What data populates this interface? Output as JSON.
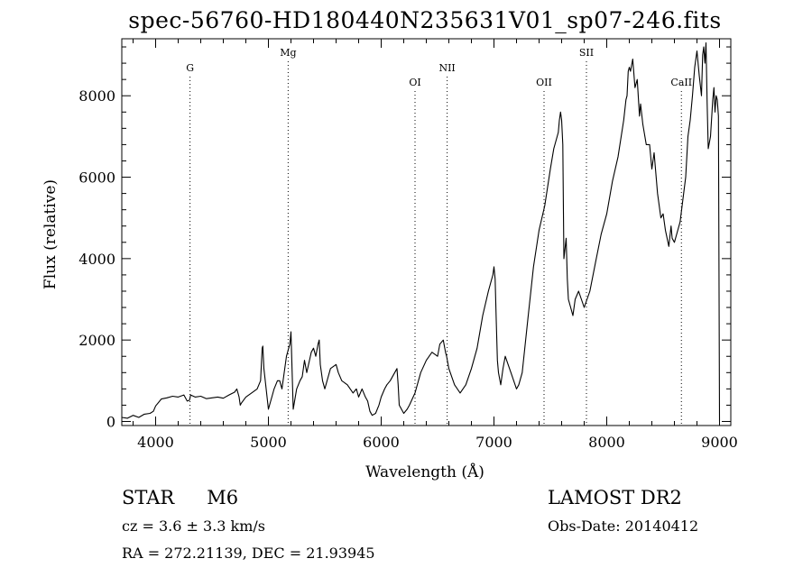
{
  "title": "spec-56760-HD180440N235631V01_sp07-246.fits",
  "info": {
    "object_class": "STAR",
    "subclass": "M6",
    "survey": "LAMOST DR2",
    "cz": "cz = 3.6 ± 3.3 km/s",
    "obs_date": "Obs-Date: 20140412",
    "coords": "RA = 272.21139, DEC =  21.93945"
  },
  "chart_data": {
    "type": "line",
    "xlabel": "Wavelength (Å)",
    "ylabel": "Flux (relative)",
    "xlim": [
      3700,
      9100
    ],
    "ylim": [
      -100,
      9400
    ],
    "xticks": [
      4000,
      5000,
      6000,
      7000,
      8000,
      9000
    ],
    "yticks": [
      0,
      2000,
      4000,
      6000,
      8000
    ],
    "grid": false,
    "line_markers": [
      {
        "label": "G",
        "x": 4305
      },
      {
        "label": "Mg",
        "x": 5175
      },
      {
        "label": "OI",
        "x": 6300
      },
      {
        "label": "NII",
        "x": 6585
      },
      {
        "label": "OII",
        "x": 7444
      },
      {
        "label": "SII",
        "x": 7820
      },
      {
        "label": "CaII",
        "x": 8662
      }
    ],
    "series": [
      {
        "x": [
          3700,
          3750,
          3800,
          3850,
          3900,
          3950,
          3980,
          4000,
          4050,
          4100,
          4150,
          4200,
          4250,
          4280,
          4300,
          4310,
          4350,
          4400,
          4450,
          4500,
          4550,
          4600,
          4650,
          4700,
          4720,
          4740,
          4750,
          4760,
          4800,
          4850,
          4900,
          4930,
          4945,
          4950,
          4960,
          5000,
          5030,
          5050,
          5080,
          5100,
          5120,
          5140,
          5160,
          5180,
          5190,
          5200,
          5220,
          5250,
          5280,
          5300,
          5320,
          5340,
          5380,
          5400,
          5420,
          5440,
          5450,
          5460,
          5480,
          5500,
          5550,
          5600,
          5620,
          5650,
          5700,
          5750,
          5780,
          5800,
          5830,
          5860,
          5880,
          5900,
          5920,
          5950,
          5980,
          6000,
          6030,
          6050,
          6080,
          6100,
          6120,
          6140,
          6150,
          6160,
          6200,
          6230,
          6250,
          6300,
          6350,
          6400,
          6450,
          6500,
          6520,
          6550,
          6570,
          6580,
          6600,
          6650,
          6700,
          6750,
          6800,
          6850,
          6900,
          6950,
          6970,
          6990,
          7000,
          7010,
          7020,
          7030,
          7040,
          7060,
          7080,
          7100,
          7150,
          7200,
          7220,
          7250,
          7300,
          7350,
          7400,
          7450,
          7500,
          7530,
          7550,
          7570,
          7580,
          7590,
          7600,
          7610,
          7620,
          7640,
          7650,
          7660,
          7680,
          7700,
          7720,
          7750,
          7800,
          7850,
          7900,
          7950,
          8000,
          8050,
          8100,
          8150,
          8170,
          8180,
          8190,
          8200,
          8210,
          8230,
          8250,
          8270,
          8290,
          8300,
          8320,
          8350,
          8380,
          8400,
          8420,
          8450,
          8480,
          8500,
          8520,
          8550,
          8570,
          8580,
          8600,
          8650,
          8700,
          8720,
          8740,
          8760,
          8780,
          8800,
          8820,
          8840,
          8850,
          8860,
          8870,
          8880,
          8890,
          8900,
          8920,
          8940,
          8950,
          8960,
          8970,
          8980,
          8990,
          9000
        ],
        "values": [
          100,
          80,
          150,
          100,
          180,
          200,
          250,
          380,
          550,
          580,
          620,
          600,
          650,
          500,
          520,
          650,
          600,
          620,
          560,
          580,
          600,
          570,
          650,
          720,
          800,
          600,
          400,
          450,
          600,
          700,
          800,
          1000,
          1800,
          1850,
          1300,
          300,
          600,
          800,
          1000,
          1000,
          800,
          1200,
          1600,
          1800,
          1900,
          2200,
          300,
          800,
          1000,
          1100,
          1500,
          1200,
          1700,
          1800,
          1600,
          1900,
          2000,
          1400,
          1000,
          800,
          1300,
          1400,
          1200,
          1000,
          900,
          700,
          800,
          600,
          800,
          600,
          500,
          250,
          150,
          200,
          400,
          600,
          800,
          900,
          1000,
          1100,
          1200,
          1300,
          900,
          400,
          200,
          300,
          400,
          700,
          1200,
          1500,
          1700,
          1600,
          1900,
          2000,
          1700,
          1600,
          1300,
          900,
          700,
          900,
          1300,
          1800,
          2600,
          3200,
          3400,
          3600,
          3800,
          3500,
          2500,
          1500,
          1200,
          900,
          1300,
          1600,
          1200,
          800,
          900,
          1200,
          2500,
          3800,
          4700,
          5300,
          6200,
          6700,
          6900,
          7100,
          7400,
          7600,
          7400,
          6800,
          4000,
          4500,
          3500,
          3000,
          2800,
          2600,
          3000,
          3200,
          2800,
          3200,
          3900,
          4600,
          5100,
          5900,
          6500,
          7400,
          7900,
          8000,
          8600,
          8700,
          8600,
          8900,
          8200,
          8400,
          7500,
          7800,
          7300,
          6800,
          6800,
          6200,
          6600,
          5600,
          5000,
          5100,
          4700,
          4300,
          4800,
          4500,
          4400,
          4900,
          6000,
          7000,
          7400,
          8000,
          8700,
          9100,
          8500,
          8000,
          9000,
          9200,
          8800,
          9300,
          7800,
          6700,
          7000,
          7900,
          8200,
          7600,
          8000,
          7900,
          7500,
          0
        ]
      }
    ]
  }
}
